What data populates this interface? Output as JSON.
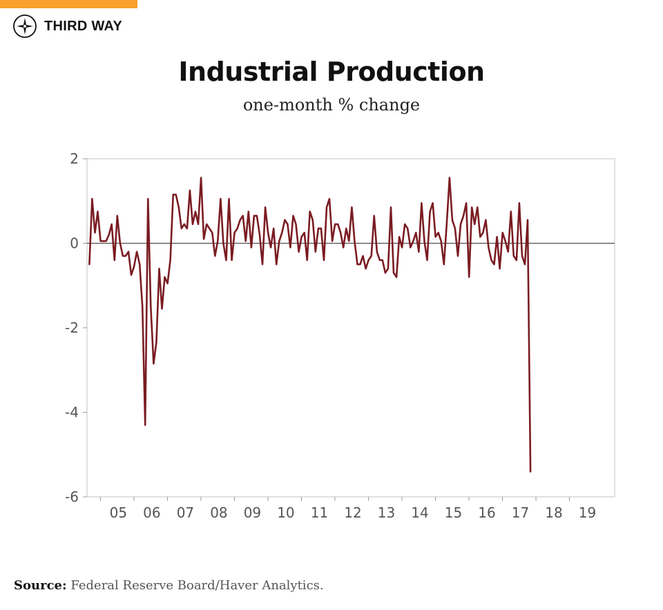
{
  "colors": {
    "accent": "#f7a02d",
    "line": "#7a1c22",
    "axis": "#cccccc",
    "text": "#111111"
  },
  "brand": {
    "name": "THIRD WAY",
    "icon": "compass-icon"
  },
  "header": {
    "title": "Industrial Production",
    "subtitle": "one-month % change"
  },
  "source": {
    "label": "Source:",
    "text": "Federal Reserve Board/Haver Analytics."
  },
  "chart_data": {
    "type": "line",
    "title": "Industrial Production",
    "subtitle": "one-month % change",
    "xlabel": "",
    "ylabel": "",
    "ylim": [
      -6,
      2
    ],
    "xlim": [
      2004.6,
      2020.35
    ],
    "yticks": [
      2,
      0,
      -2,
      -4,
      -6
    ],
    "xticks": [
      {
        "label": "05",
        "value": 2005.0
      },
      {
        "label": "06",
        "value": 2006.0
      },
      {
        "label": "07",
        "value": 2007.0
      },
      {
        "label": "08",
        "value": 2008.0
      },
      {
        "label": "09",
        "value": 2009.0
      },
      {
        "label": "10",
        "value": 2010.0
      },
      {
        "label": "11",
        "value": 2011.0
      },
      {
        "label": "12",
        "value": 2012.0
      },
      {
        "label": "13",
        "value": 2013.0
      },
      {
        "label": "14",
        "value": 2014.0
      },
      {
        "label": "15",
        "value": 2015.0
      },
      {
        "label": "16",
        "value": 2016.0
      },
      {
        "label": "17",
        "value": 2017.0
      },
      {
        "label": "18",
        "value": 2018.0
      },
      {
        "label": "19",
        "value": 2019.0
      }
    ],
    "grid": false,
    "zero_line": true,
    "series": [
      {
        "start": 2004.67,
        "step_months": 1,
        "values": [
          -0.5,
          1.05,
          0.25,
          0.75,
          0.05,
          0.05,
          0.05,
          0.2,
          0.45,
          -0.4,
          0.65,
          0.0,
          -0.3,
          -0.3,
          -0.2,
          -0.75,
          -0.55,
          -0.2,
          -0.5,
          -1.5,
          -4.3,
          1.05,
          -1.5,
          -2.85,
          -2.35,
          -0.6,
          -1.55,
          -0.8,
          -0.95,
          -0.4,
          1.15,
          1.15,
          0.85,
          0.35,
          0.45,
          0.35,
          1.25,
          0.45,
          0.75,
          0.45,
          1.55,
          0.1,
          0.45,
          0.35,
          0.25,
          -0.3,
          0.05,
          1.05,
          0.0,
          -0.4,
          1.05,
          -0.4,
          0.25,
          0.35,
          0.55,
          0.65,
          0.05,
          0.75,
          -0.1,
          0.65,
          0.65,
          0.2,
          -0.5,
          0.85,
          0.25,
          -0.1,
          0.35,
          -0.5,
          0.05,
          0.25,
          0.55,
          0.45,
          -0.1,
          0.65,
          0.45,
          -0.2,
          0.15,
          0.25,
          -0.4,
          0.75,
          0.55,
          -0.2,
          0.35,
          0.35,
          -0.4,
          0.85,
          1.05,
          0.05,
          0.45,
          0.45,
          0.25,
          -0.1,
          0.35,
          0.05,
          0.85,
          0.05,
          -0.5,
          -0.5,
          -0.3,
          -0.6,
          -0.4,
          -0.3,
          0.65,
          -0.2,
          -0.4,
          -0.4,
          -0.7,
          -0.6,
          0.85,
          -0.7,
          -0.8,
          0.15,
          -0.1,
          0.45,
          0.35,
          -0.1,
          0.05,
          0.25,
          -0.2,
          0.95,
          0.05,
          -0.4,
          0.75,
          0.95,
          0.15,
          0.25,
          0.05,
          -0.5,
          0.45,
          1.55,
          0.55,
          0.35,
          -0.3,
          0.45,
          0.65,
          0.95,
          -0.8,
          0.85,
          0.45,
          0.85,
          0.15,
          0.25,
          0.55,
          -0.1,
          -0.4,
          -0.5,
          0.15,
          -0.6,
          0.25,
          0.05,
          -0.2,
          0.75,
          -0.3,
          -0.4,
          0.95,
          -0.3,
          -0.5,
          0.55,
          -5.4
        ]
      }
    ]
  }
}
